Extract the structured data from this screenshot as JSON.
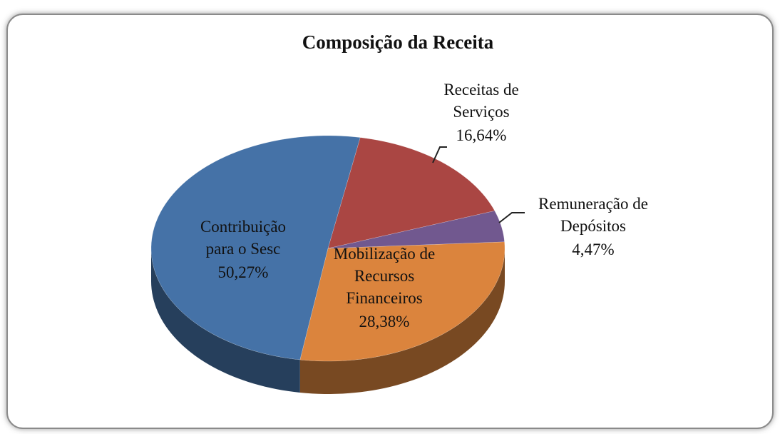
{
  "chart_data": {
    "type": "pie",
    "title": "Composição da Receita",
    "categories": [
      "Receitas de Serviços",
      "Remuneração de Depósitos",
      "Mobilização de Recursos Financeiros",
      "Contribuição para o Sesc"
    ],
    "values": [
      16.64,
      4.47,
      28.38,
      50.27
    ],
    "value_labels": [
      "16,64%",
      "4,47%",
      "28,38%",
      "50,27%"
    ],
    "colors": [
      "#aa4643",
      "#71588f",
      "#db843d",
      "#4572a7"
    ]
  }
}
